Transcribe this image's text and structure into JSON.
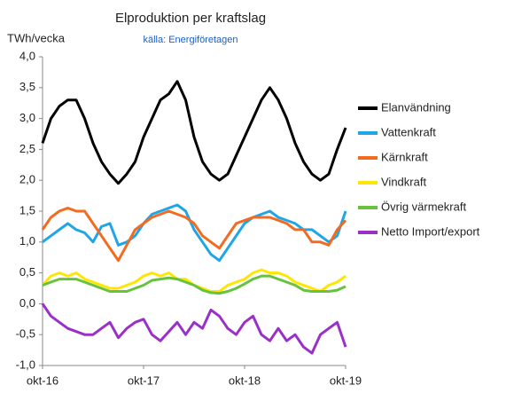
{
  "chart_data": {
    "type": "line",
    "title": "Elproduktion per kraftslag",
    "subtitle": "källa: Energiföretagen",
    "y_label": "TWh/vecka",
    "categories": [
      "okt-16",
      null,
      null,
      null,
      null,
      null,
      null,
      null,
      null,
      null,
      null,
      null,
      "okt-17",
      null,
      null,
      null,
      null,
      null,
      null,
      null,
      null,
      null,
      null,
      null,
      "okt-18",
      null,
      null,
      null,
      null,
      null,
      null,
      null,
      null,
      null,
      null,
      null,
      "okt-19"
    ],
    "series": [
      {
        "name": "Elanvändning",
        "color": "#000000",
        "values": [
          2.6,
          3.0,
          3.2,
          3.3,
          3.3,
          3.0,
          2.6,
          2.3,
          2.1,
          1.95,
          2.1,
          2.3,
          2.7,
          3.0,
          3.3,
          3.4,
          3.6,
          3.3,
          2.7,
          2.3,
          2.1,
          2.0,
          2.1,
          2.4,
          2.7,
          3.0,
          3.3,
          3.5,
          3.3,
          3.0,
          2.6,
          2.3,
          2.1,
          2.0,
          2.1,
          2.5,
          2.85
        ]
      },
      {
        "name": "Vattenkraft",
        "color": "#1ea6e6",
        "values": [
          1.0,
          1.1,
          1.2,
          1.3,
          1.2,
          1.15,
          1.0,
          1.25,
          1.3,
          0.95,
          1.0,
          1.1,
          1.3,
          1.45,
          1.5,
          1.55,
          1.6,
          1.5,
          1.2,
          1.0,
          0.8,
          0.7,
          0.9,
          1.1,
          1.3,
          1.4,
          1.45,
          1.5,
          1.4,
          1.35,
          1.3,
          1.2,
          1.2,
          1.1,
          1.0,
          1.1,
          1.5
        ]
      },
      {
        "name": "Kärnkraft",
        "color": "#f36b21",
        "values": [
          1.2,
          1.4,
          1.5,
          1.55,
          1.5,
          1.5,
          1.3,
          1.1,
          0.9,
          0.7,
          0.95,
          1.2,
          1.3,
          1.4,
          1.45,
          1.5,
          1.45,
          1.4,
          1.3,
          1.1,
          1.0,
          0.9,
          1.1,
          1.3,
          1.35,
          1.4,
          1.4,
          1.4,
          1.35,
          1.3,
          1.2,
          1.2,
          1.0,
          1.0,
          0.95,
          1.2,
          1.35
        ]
      },
      {
        "name": "Vindkraft",
        "color": "#ffe600",
        "values": [
          0.3,
          0.45,
          0.5,
          0.45,
          0.5,
          0.4,
          0.35,
          0.3,
          0.25,
          0.25,
          0.3,
          0.35,
          0.45,
          0.5,
          0.45,
          0.5,
          0.4,
          0.4,
          0.3,
          0.25,
          0.2,
          0.2,
          0.3,
          0.35,
          0.4,
          0.5,
          0.55,
          0.5,
          0.5,
          0.45,
          0.35,
          0.3,
          0.25,
          0.2,
          0.3,
          0.35,
          0.45
        ]
      },
      {
        "name": "Övrig värmekraft",
        "color": "#66c23f",
        "values": [
          0.3,
          0.35,
          0.4,
          0.4,
          0.4,
          0.35,
          0.3,
          0.25,
          0.2,
          0.2,
          0.2,
          0.25,
          0.3,
          0.38,
          0.4,
          0.42,
          0.4,
          0.35,
          0.3,
          0.22,
          0.18,
          0.17,
          0.2,
          0.25,
          0.32,
          0.4,
          0.45,
          0.45,
          0.4,
          0.35,
          0.3,
          0.22,
          0.2,
          0.2,
          0.2,
          0.22,
          0.28
        ]
      },
      {
        "name": "Netto Import/export",
        "color": "#9b30c8",
        "values": [
          0.0,
          -0.2,
          -0.3,
          -0.4,
          -0.45,
          -0.5,
          -0.5,
          -0.4,
          -0.3,
          -0.55,
          -0.4,
          -0.3,
          -0.25,
          -0.5,
          -0.6,
          -0.45,
          -0.3,
          -0.5,
          -0.3,
          -0.4,
          -0.1,
          -0.2,
          -0.4,
          -0.5,
          -0.3,
          -0.2,
          -0.5,
          -0.6,
          -0.4,
          -0.6,
          -0.5,
          -0.7,
          -0.8,
          -0.5,
          -0.4,
          -0.3,
          -0.7
        ]
      }
    ],
    "ylim": [
      -1,
      4
    ],
    "yticks": [
      {
        "value": -1,
        "label": "-1,0"
      },
      {
        "value": -0.5,
        "label": "-0,5"
      },
      {
        "value": 0,
        "label": "0,0"
      },
      {
        "value": 0.5,
        "label": "0,5"
      },
      {
        "value": 1,
        "label": "1,0"
      },
      {
        "value": 1.5,
        "label": "1,5"
      },
      {
        "value": 2,
        "label": "2,0"
      },
      {
        "value": 2.5,
        "label": "2,5"
      },
      {
        "value": 3,
        "label": "3,0"
      },
      {
        "value": 3.5,
        "label": "3,5"
      },
      {
        "value": 4,
        "label": "4,0"
      }
    ],
    "grid": false,
    "legend": "right"
  }
}
